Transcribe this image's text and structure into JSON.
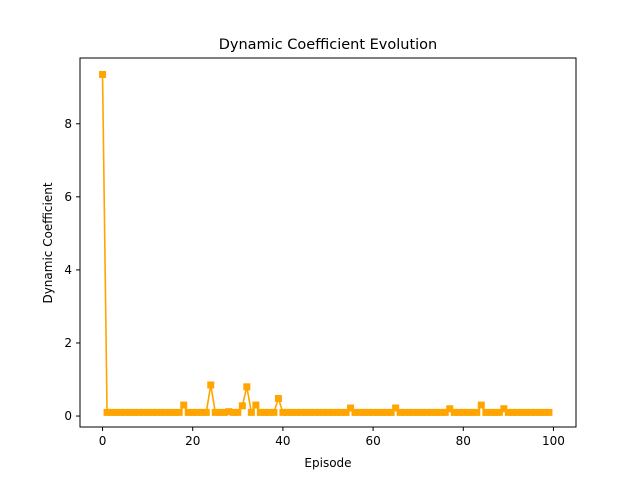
{
  "chart_data": {
    "type": "line",
    "title": "Dynamic Coefficient Evolution",
    "xlabel": "Episode",
    "ylabel": "Dynamic Coefficient",
    "xlim": [
      -5,
      105
    ],
    "ylim": [
      -0.3,
      9.8
    ],
    "xticks": [
      0,
      20,
      40,
      60,
      80,
      100
    ],
    "yticks": [
      0,
      2,
      4,
      6,
      8
    ],
    "grid": false,
    "marker": "square",
    "color": "#ffa500",
    "series": [
      {
        "x": [
          0,
          1,
          2,
          3,
          4,
          5,
          6,
          7,
          8,
          9,
          10,
          11,
          12,
          13,
          14,
          15,
          16,
          17,
          18,
          19,
          20,
          21,
          22,
          23,
          24,
          25,
          26,
          27,
          28,
          29,
          30,
          31,
          32,
          33,
          34,
          35,
          36,
          37,
          38,
          39,
          40,
          41,
          42,
          43,
          44,
          45,
          46,
          47,
          48,
          49,
          50,
          51,
          52,
          53,
          54,
          55,
          56,
          57,
          58,
          59,
          60,
          61,
          62,
          63,
          64,
          65,
          66,
          67,
          68,
          69,
          70,
          71,
          72,
          73,
          74,
          75,
          76,
          77,
          78,
          79,
          80,
          81,
          82,
          83,
          84,
          85,
          86,
          87,
          88,
          89,
          90,
          91,
          92,
          93,
          94,
          95,
          96,
          97,
          98,
          99
        ],
        "y": [
          9.35,
          0.1,
          0.1,
          0.1,
          0.1,
          0.1,
          0.1,
          0.1,
          0.1,
          0.1,
          0.1,
          0.1,
          0.1,
          0.1,
          0.1,
          0.1,
          0.1,
          0.1,
          0.3,
          0.1,
          0.1,
          0.1,
          0.1,
          0.1,
          0.85,
          0.1,
          0.1,
          0.1,
          0.12,
          0.1,
          0.1,
          0.28,
          0.8,
          0.1,
          0.3,
          0.1,
          0.1,
          0.1,
          0.1,
          0.48,
          0.1,
          0.1,
          0.1,
          0.1,
          0.1,
          0.1,
          0.1,
          0.1,
          0.1,
          0.1,
          0.1,
          0.1,
          0.1,
          0.1,
          0.1,
          0.22,
          0.1,
          0.1,
          0.1,
          0.1,
          0.1,
          0.1,
          0.1,
          0.1,
          0.1,
          0.22,
          0.1,
          0.1,
          0.1,
          0.1,
          0.1,
          0.1,
          0.1,
          0.1,
          0.1,
          0.1,
          0.1,
          0.2,
          0.1,
          0.1,
          0.1,
          0.1,
          0.1,
          0.1,
          0.3,
          0.1,
          0.1,
          0.1,
          0.1,
          0.2,
          0.1,
          0.1,
          0.1,
          0.1,
          0.1,
          0.1,
          0.1,
          0.1,
          0.1,
          0.1
        ]
      }
    ]
  }
}
